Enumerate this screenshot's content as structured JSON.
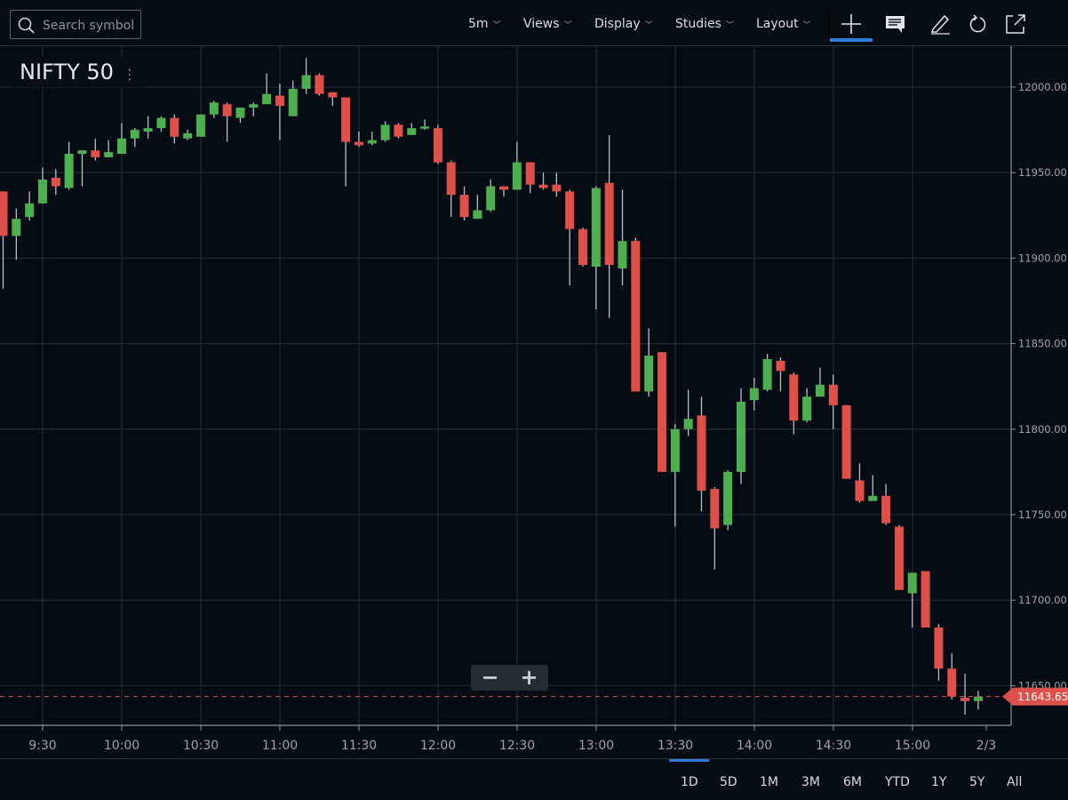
{
  "toolbar": {
    "search_placeholder": "Search symbol",
    "interval": "5m",
    "views": "Views",
    "display": "Display",
    "studies": "Studies",
    "layout": "Layout",
    "icons": [
      "crosshair-icon",
      "comment-icon",
      "draw-pencil-icon",
      "refresh-icon",
      "share-icon"
    ]
  },
  "symbol": {
    "name": "NIFTY 50"
  },
  "zoom": {
    "minus": "−",
    "plus": "+"
  },
  "ranges": [
    "1D",
    "5D",
    "1M",
    "3M",
    "6M",
    "YTD",
    "1Y",
    "5Y",
    "All"
  ],
  "active_range": "1D",
  "colors": {
    "up": "#4caf50",
    "down": "#e0504a",
    "accent": "#2f7ddb",
    "background": "#050c14"
  },
  "chart_data": {
    "type": "candlestick",
    "interval": "5m",
    "ylim": [
      11620,
      12030
    ],
    "y_ticks": [
      "12000.00",
      "11950.00",
      "11900.00",
      "11850.00",
      "11800.00",
      "11750.00",
      "11700.00",
      "11650.00"
    ],
    "x_ticks": [
      "9:30",
      "10:00",
      "10:30",
      "11:00",
      "11:30",
      "12:00",
      "12:30",
      "13:00",
      "13:30",
      "14:00",
      "14:30",
      "15:00",
      "2/3"
    ],
    "grid": true,
    "last_price": "11643.65",
    "candles_ohlc": [
      [
        11939,
        11939,
        11882,
        11913
      ],
      [
        11913,
        11929,
        11899,
        11923
      ],
      [
        11924,
        11939,
        11922,
        11932
      ],
      [
        11932,
        11953,
        11932,
        11946
      ],
      [
        11947,
        11952,
        11937,
        11942
      ],
      [
        11941,
        11968,
        11940,
        11961
      ],
      [
        11961,
        11963,
        11942,
        11963
      ],
      [
        11963,
        11970,
        11957,
        11959
      ],
      [
        11959,
        11969,
        11959,
        11962
      ],
      [
        11961,
        11979,
        11961,
        11970
      ],
      [
        11970,
        11976,
        11965,
        11975
      ],
      [
        11974,
        11983,
        11970,
        11976
      ],
      [
        11976,
        11983,
        11974,
        11982
      ],
      [
        11982,
        11984,
        11967,
        11971
      ],
      [
        11970,
        11975,
        11969,
        11973
      ],
      [
        11971,
        11984,
        11971,
        11984
      ],
      [
        11984,
        11992,
        11982,
        11991
      ],
      [
        11990,
        11991,
        11968,
        11983
      ],
      [
        11982,
        11988,
        11979,
        11988
      ],
      [
        11988,
        11991,
        11983,
        11990
      ],
      [
        11990,
        12008,
        11990,
        11996
      ],
      [
        11995,
        12002,
        11969,
        11989
      ],
      [
        11983,
        12004,
        11983,
        11999
      ],
      [
        11999,
        12017,
        11996,
        12007
      ],
      [
        12007,
        12008,
        11995,
        11996
      ],
      [
        11997,
        11997,
        11989,
        11994
      ],
      [
        11994,
        11994,
        11942,
        11968
      ],
      [
        11968,
        11974,
        11965,
        11966
      ],
      [
        11967,
        11974,
        11966,
        11969
      ],
      [
        11969,
        11980,
        11968,
        11978
      ],
      [
        11978,
        11979,
        11970,
        11971
      ],
      [
        11972,
        11979,
        11972,
        11976
      ],
      [
        11976,
        11981,
        11975,
        11977
      ],
      [
        11976,
        11978,
        11955,
        11956
      ],
      [
        11956,
        11957,
        11924,
        11937
      ],
      [
        11937,
        11942,
        11922,
        11924
      ],
      [
        11923,
        11937,
        11923,
        11928
      ],
      [
        11928,
        11946,
        11927,
        11942
      ],
      [
        11942,
        11942,
        11936,
        11940
      ],
      [
        11940,
        11968,
        11940,
        11956
      ],
      [
        11956,
        11956,
        11938,
        11943
      ],
      [
        11943,
        11950,
        11940,
        11941
      ],
      [
        11943,
        11950,
        11936,
        11939
      ],
      [
        11939,
        11940,
        11884,
        11917
      ],
      [
        11917,
        11918,
        11895,
        11896
      ],
      [
        11895,
        11942,
        11870,
        11941
      ],
      [
        11944,
        11972,
        11865,
        11896
      ],
      [
        11894,
        11940,
        11884,
        11910
      ],
      [
        11910,
        11912,
        11822,
        11822
      ],
      [
        11822,
        11859,
        11819,
        11843
      ],
      [
        11845,
        11845,
        11775,
        11775
      ],
      [
        11775,
        11803,
        11743,
        11800
      ],
      [
        11800,
        11823,
        11796,
        11806
      ],
      [
        11808,
        11819,
        11752,
        11764
      ],
      [
        11765,
        11766,
        11718,
        11742
      ],
      [
        11744,
        11776,
        11741,
        11775
      ],
      [
        11775,
        11824,
        11768,
        11816
      ],
      [
        11817,
        11830,
        11811,
        11824
      ],
      [
        11823,
        11844,
        11822,
        11841
      ],
      [
        11840,
        11842,
        11822,
        11834
      ],
      [
        11832,
        11833,
        11797,
        11805
      ],
      [
        11805,
        11824,
        11804,
        11819
      ],
      [
        11819,
        11836,
        11819,
        11826
      ],
      [
        11826,
        11832,
        11800,
        11814
      ],
      [
        11814,
        11814,
        11771,
        11771
      ],
      [
        11770,
        11780,
        11757,
        11758
      ],
      [
        11758,
        11773,
        11758,
        11761
      ],
      [
        11761,
        11768,
        11744,
        11745
      ],
      [
        11743,
        11744,
        11706,
        11706
      ],
      [
        11704,
        11716,
        11684,
        11716
      ],
      [
        11717,
        11717,
        11684,
        11684
      ],
      [
        11684,
        11686,
        11653,
        11660
      ],
      [
        11660,
        11669,
        11642,
        11643.7
      ],
      [
        11643,
        11657,
        11633,
        11641
      ],
      [
        11641,
        11647,
        11636,
        11643.65
      ]
    ]
  }
}
